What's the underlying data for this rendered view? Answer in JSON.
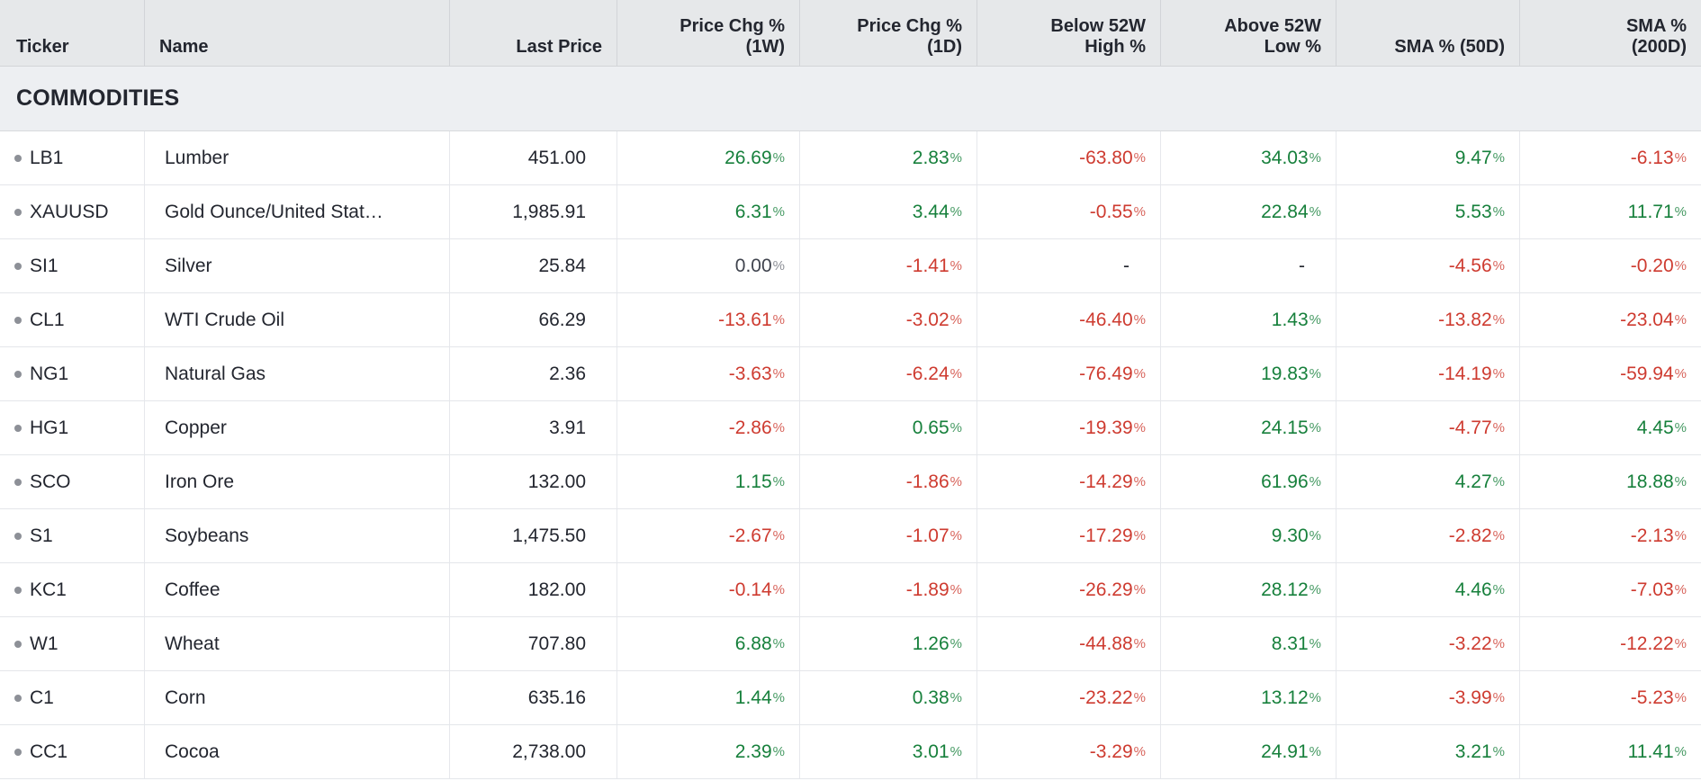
{
  "colors": {
    "positive": "#17803c",
    "negative": "#ce3b30",
    "neutral_value": "#40444e",
    "neutral_percent_sign": "#8d9097",
    "header_background": "#e6e8ea",
    "section_background": "#edeff2",
    "text": "#23262f",
    "ticker_dot": "#8d9097"
  },
  "percent_sign": "%",
  "not_available_symbol": "-",
  "columns": [
    {
      "key": "ticker",
      "label": "Ticker",
      "align": "left"
    },
    {
      "key": "name",
      "label": "Name",
      "align": "left"
    },
    {
      "key": "last_price",
      "label": "Last Price",
      "align": "right"
    },
    {
      "key": "chg_1w",
      "label": "Price Chg %\n(1W)",
      "align": "right"
    },
    {
      "key": "chg_1d",
      "label": "Price Chg %\n(1D)",
      "align": "right"
    },
    {
      "key": "below_52w_high",
      "label": "Below 52W\nHigh %",
      "align": "right"
    },
    {
      "key": "above_52w_low",
      "label": "Above 52W\nLow %",
      "align": "right"
    },
    {
      "key": "sma_50d",
      "label": "SMA % (50D)",
      "align": "right"
    },
    {
      "key": "sma_200d",
      "label": "SMA %\n(200D)",
      "align": "right"
    }
  ],
  "section": {
    "title": "COMMODITIES"
  },
  "rows": [
    {
      "ticker": "LB1",
      "name": "Lumber",
      "last_price": "451.00",
      "values": [
        "26.69",
        "2.83",
        "-63.80",
        "34.03",
        "9.47",
        "-6.13"
      ]
    },
    {
      "ticker": "XAUUSD",
      "name": "Gold Ounce/United Stat…",
      "last_price": "1,985.91",
      "values": [
        "6.31",
        "3.44",
        "-0.55",
        "22.84",
        "5.53",
        "11.71"
      ]
    },
    {
      "ticker": "SI1",
      "name": "Silver",
      "last_price": "25.84",
      "values": [
        "0.00",
        "-1.41",
        "-",
        "-",
        "-4.56",
        "-0.20"
      ]
    },
    {
      "ticker": "CL1",
      "name": "WTI Crude Oil",
      "last_price": "66.29",
      "values": [
        "-13.61",
        "-3.02",
        "-46.40",
        "1.43",
        "-13.82",
        "-23.04"
      ]
    },
    {
      "ticker": "NG1",
      "name": "Natural Gas",
      "last_price": "2.36",
      "values": [
        "-3.63",
        "-6.24",
        "-76.49",
        "19.83",
        "-14.19",
        "-59.94"
      ]
    },
    {
      "ticker": "HG1",
      "name": "Copper",
      "last_price": "3.91",
      "values": [
        "-2.86",
        "0.65",
        "-19.39",
        "24.15",
        "-4.77",
        "4.45"
      ]
    },
    {
      "ticker": "SCO",
      "name": "Iron Ore",
      "last_price": "132.00",
      "values": [
        "1.15",
        "-1.86",
        "-14.29",
        "61.96",
        "4.27",
        "18.88"
      ]
    },
    {
      "ticker": "S1",
      "name": "Soybeans",
      "last_price": "1,475.50",
      "values": [
        "-2.67",
        "-1.07",
        "-17.29",
        "9.30",
        "-2.82",
        "-2.13"
      ]
    },
    {
      "ticker": "KC1",
      "name": "Coffee",
      "last_price": "182.00",
      "values": [
        "-0.14",
        "-1.89",
        "-26.29",
        "28.12",
        "4.46",
        "-7.03"
      ]
    },
    {
      "ticker": "W1",
      "name": "Wheat",
      "last_price": "707.80",
      "values": [
        "6.88",
        "1.26",
        "-44.88",
        "8.31",
        "-3.22",
        "-12.22"
      ]
    },
    {
      "ticker": "C1",
      "name": "Corn",
      "last_price": "635.16",
      "values": [
        "1.44",
        "0.38",
        "-23.22",
        "13.12",
        "-3.99",
        "-5.23"
      ]
    },
    {
      "ticker": "CC1",
      "name": "Cocoa",
      "last_price": "2,738.00",
      "values": [
        "2.39",
        "3.01",
        "-3.29",
        "24.91",
        "3.21",
        "11.41"
      ]
    }
  ]
}
